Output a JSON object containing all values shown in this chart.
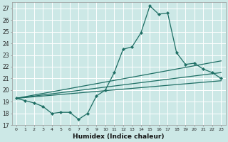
{
  "xlabel": "Humidex (Indice chaleur)",
  "bg_color": "#cce8e6",
  "grid_color": "#ffffff",
  "line_color": "#1e6e64",
  "xlim": [
    -0.5,
    23.5
  ],
  "ylim": [
    17,
    27.5
  ],
  "yticks": [
    17,
    18,
    19,
    20,
    21,
    22,
    23,
    24,
    25,
    26,
    27
  ],
  "xticks": [
    0,
    1,
    2,
    3,
    4,
    5,
    6,
    7,
    8,
    9,
    10,
    11,
    12,
    13,
    14,
    15,
    16,
    17,
    18,
    19,
    20,
    21,
    22,
    23
  ],
  "series1_x": [
    0,
    1,
    2,
    3,
    4,
    5,
    6,
    7,
    8,
    9,
    10,
    11,
    12,
    13,
    14,
    15,
    16,
    17,
    18,
    19,
    20,
    21,
    22,
    23
  ],
  "series1_y": [
    19.3,
    19.1,
    18.9,
    18.6,
    18.0,
    18.1,
    18.1,
    17.5,
    18.0,
    19.5,
    20.0,
    21.5,
    23.5,
    23.7,
    24.9,
    27.2,
    26.5,
    26.6,
    23.2,
    22.2,
    22.3,
    21.8,
    21.5,
    21.0
  ],
  "series2_x": [
    0,
    23
  ],
  "series2_y": [
    19.3,
    22.5
  ],
  "series3_x": [
    0,
    23
  ],
  "series3_y": [
    19.3,
    20.8
  ],
  "series4_x": [
    0,
    23
  ],
  "series4_y": [
    19.3,
    21.5
  ]
}
